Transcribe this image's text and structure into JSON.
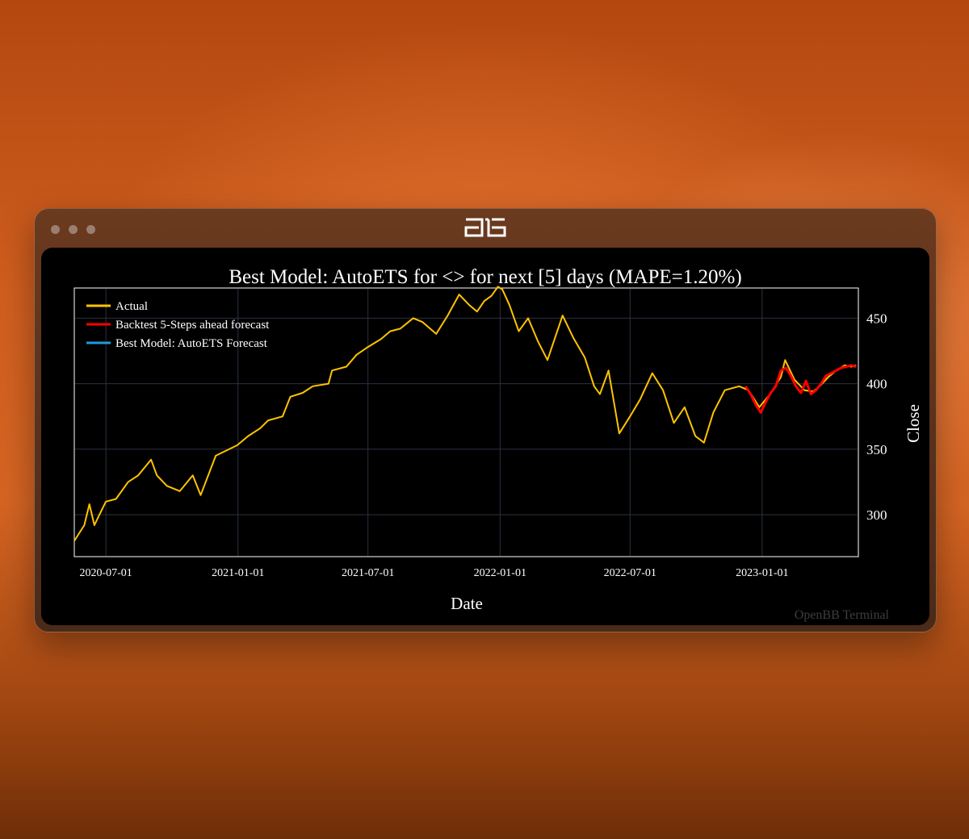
{
  "window": {
    "title_logo": "openbb-logo-icon",
    "controls": [
      "close-dot",
      "minimize-dot",
      "maximize-dot"
    ]
  },
  "watermark": "OpenBB Terminal",
  "chart_data": {
    "type": "line",
    "title": "Best Model: AutoETS for <> for next [5] days (MAPE=1.20%)",
    "xlabel": "Date",
    "ylabel": "Close",
    "xlim": [
      "2020-05-18",
      "2023-05-15"
    ],
    "ylim": [
      268,
      473
    ],
    "x_ticks": [
      "2020-07-01",
      "2021-01-01",
      "2021-07-01",
      "2022-01-01",
      "2022-07-01",
      "2023-01-01"
    ],
    "y_ticks": [
      300,
      350,
      400,
      450
    ],
    "y_axis_side": "right",
    "grid": true,
    "legend_position": "top-left",
    "legend": [
      "Actual",
      "Backtest 5-Steps ahead forecast",
      "Best Model: AutoETS Forecast"
    ],
    "colors": {
      "Actual": "#ffc400",
      "Backtest 5-Steps ahead forecast": "#ff0000",
      "Best Model: AutoETS Forecast": "#1f9be0"
    },
    "series": [
      {
        "name": "Actual",
        "x": [
          "2020-05-18",
          "2020-06-01",
          "2020-06-08",
          "2020-06-15",
          "2020-06-22",
          "2020-07-01",
          "2020-07-15",
          "2020-08-01",
          "2020-08-15",
          "2020-09-02",
          "2020-09-10",
          "2020-09-24",
          "2020-10-12",
          "2020-10-30",
          "2020-11-10",
          "2020-12-01",
          "2020-12-31",
          "2021-01-15",
          "2021-02-01",
          "2021-02-12",
          "2021-03-04",
          "2021-03-15",
          "2021-04-01",
          "2021-04-15",
          "2021-05-07",
          "2021-05-12",
          "2021-06-01",
          "2021-06-15",
          "2021-07-01",
          "2021-07-19",
          "2021-08-01",
          "2021-08-15",
          "2021-09-02",
          "2021-09-15",
          "2021-10-04",
          "2021-10-20",
          "2021-11-05",
          "2021-11-19",
          "2021-11-30",
          "2021-12-10",
          "2021-12-20",
          "2021-12-29",
          "2022-01-04",
          "2022-01-14",
          "2022-01-27",
          "2022-02-09",
          "2022-02-23",
          "2022-03-08",
          "2022-03-29",
          "2022-04-13",
          "2022-04-29",
          "2022-05-12",
          "2022-05-20",
          "2022-06-01",
          "2022-06-16",
          "2022-07-01",
          "2022-07-15",
          "2022-08-01",
          "2022-08-16",
          "2022-08-31",
          "2022-09-15",
          "2022-09-30",
          "2022-10-12",
          "2022-10-25",
          "2022-11-10",
          "2022-11-30",
          "2022-12-13",
          "2022-12-28",
          "2023-01-12",
          "2023-01-27",
          "2023-02-02",
          "2023-02-15",
          "2023-03-01",
          "2023-03-13",
          "2023-03-22",
          "2023-04-03",
          "2023-04-14",
          "2023-04-26",
          "2023-05-05",
          "2023-05-12"
        ],
        "values": [
          280,
          292,
          308,
          292,
          300,
          310,
          312,
          325,
          330,
          342,
          330,
          322,
          318,
          330,
          315,
          345,
          353,
          360,
          366,
          372,
          375,
          390,
          393,
          398,
          400,
          410,
          413,
          422,
          428,
          434,
          440,
          442,
          450,
          447,
          438,
          452,
          468,
          460,
          455,
          463,
          467,
          474,
          472,
          460,
          440,
          450,
          432,
          418,
          452,
          435,
          420,
          398,
          392,
          410,
          362,
          375,
          388,
          408,
          395,
          370,
          382,
          360,
          355,
          378,
          395,
          398,
          395,
          382,
          392,
          405,
          418,
          403,
          395,
          394,
          398,
          405,
          410,
          414,
          413,
          414
        ]
      },
      {
        "name": "Backtest 5-Steps ahead forecast",
        "x": [
          "2022-12-09",
          "2022-12-16",
          "2022-12-23",
          "2022-12-30",
          "2023-01-06",
          "2023-01-13",
          "2023-01-20",
          "2023-01-27",
          "2023-02-03",
          "2023-02-10",
          "2023-02-17",
          "2023-02-24",
          "2023-03-03",
          "2023-03-10",
          "2023-03-17",
          "2023-03-24",
          "2023-03-31",
          "2023-04-07",
          "2023-04-14",
          "2023-04-21",
          "2023-04-28",
          "2023-05-05",
          "2023-05-12"
        ],
        "values": [
          398,
          392,
          384,
          378,
          386,
          393,
          398,
          410,
          412,
          406,
          398,
          393,
          402,
          392,
          395,
          400,
          406,
          408,
          410,
          412,
          413,
          414,
          413
        ]
      },
      {
        "name": "Best Model: AutoETS Forecast",
        "x": [],
        "values": []
      }
    ]
  }
}
